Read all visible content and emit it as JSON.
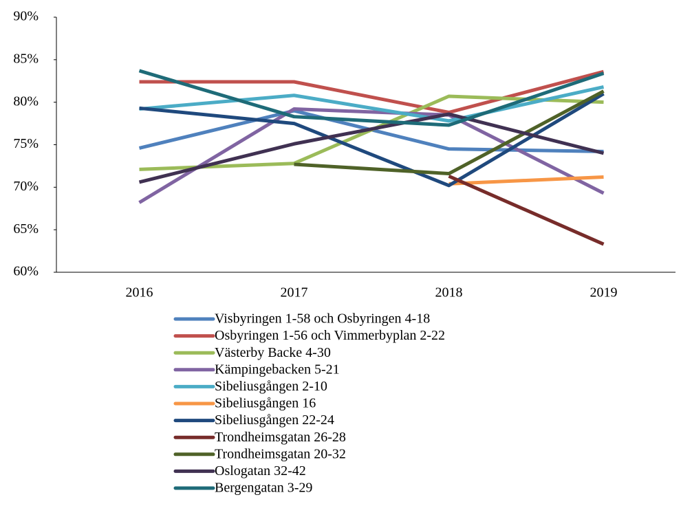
{
  "chart_data": {
    "type": "line",
    "categories": [
      "2016",
      "2017",
      "2018",
      "2019"
    ],
    "ylim": [
      60,
      90
    ],
    "yticks": [
      {
        "value": 60,
        "label": "60%"
      },
      {
        "value": 65,
        "label": "65%"
      },
      {
        "value": 70,
        "label": "70%"
      },
      {
        "value": 75,
        "label": "75%"
      },
      {
        "value": 80,
        "label": "80%"
      },
      {
        "value": 85,
        "label": "85%"
      },
      {
        "value": 90,
        "label": "90%"
      }
    ],
    "grid": false,
    "legend": "bottom",
    "series": [
      {
        "name": "Visbyringen 1-58 och Osbyringen 4-18",
        "color": "#4f81bd",
        "values": [
          74.6,
          79.0,
          74.5,
          74.2
        ]
      },
      {
        "name": "Osbyringen 1-56 och Vimmerbyplan 2-22",
        "color": "#c0504d",
        "values": [
          82.4,
          82.4,
          78.8,
          83.6
        ]
      },
      {
        "name": "Västerby Backe 4-30",
        "color": "#9bbb59",
        "values": [
          72.1,
          72.8,
          80.7,
          80.0
        ]
      },
      {
        "name": "Kämpingebacken 5-21",
        "color": "#8064a2",
        "values": [
          68.2,
          79.2,
          78.5,
          69.3
        ]
      },
      {
        "name": "Sibeliusgången 2-10",
        "color": "#4bacc6",
        "values": [
          79.2,
          80.8,
          77.8,
          81.8
        ]
      },
      {
        "name": "Sibeliusgången 16",
        "color": "#f79646",
        "values": [
          null,
          null,
          70.4,
          71.2
        ]
      },
      {
        "name": "Sibeliusgången 22-24",
        "color": "#1f497d",
        "values": [
          79.3,
          77.5,
          70.2,
          81.0
        ]
      },
      {
        "name": "Trondheimsgatan 26-28",
        "color": "#772c2a",
        "values": [
          null,
          null,
          71.3,
          63.3
        ]
      },
      {
        "name": "Trondheimsgatan 20-32",
        "color": "#4f6228",
        "values": [
          null,
          72.7,
          71.6,
          81.3
        ]
      },
      {
        "name": "Oslogatan 32-42",
        "color": "#403152",
        "values": [
          70.6,
          75.1,
          78.6,
          74.0
        ]
      },
      {
        "name": "Bergengatan 3-29",
        "color": "#1e6b78",
        "values": [
          83.7,
          78.3,
          77.3,
          83.4
        ]
      }
    ]
  }
}
